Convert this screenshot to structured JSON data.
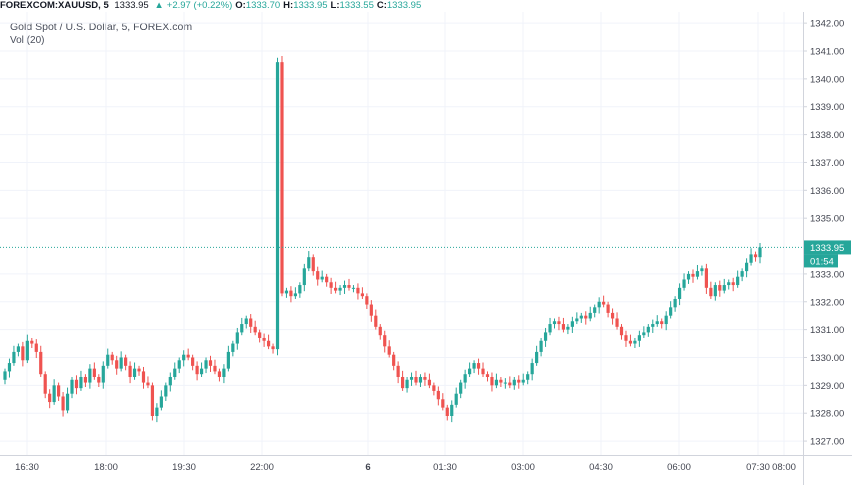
{
  "header": {
    "symbol": "FOREXCOM:XAUUSD, 5",
    "last": "1333.95",
    "change": "+2.97 (+0.22%)",
    "o_label": "O:",
    "o_value": "1333.70",
    "h_label": "H:",
    "h_value": "1333.95",
    "l_label": "L:",
    "l_value": "1333.55",
    "c_label": "C:",
    "c_value": "1333.95"
  },
  "legend": {
    "title": "Gold Spot / U.S. Dollar, 5, FOREX.com",
    "volume": "Vol (20)"
  },
  "colors": {
    "up": "#26a69a",
    "down": "#ef5350",
    "price_line": "#26a69a",
    "grid": "#f0f3fa",
    "axis": "#d1d4dc"
  },
  "chart_data": {
    "type": "candlestick",
    "x_ticks": [
      "16:30",
      "18:00",
      "19:30",
      "22:00",
      "6",
      "01:30",
      "03:00",
      "04:30",
      "06:00",
      "07:30",
      "08:00"
    ],
    "y_ticks": [
      "1342.00",
      "1341.00",
      "1340.00",
      "1339.00",
      "1338.00",
      "1337.00",
      "1336.00",
      "1335.00",
      "1333.00",
      "1332.00",
      "1331.00",
      "1330.00",
      "1329.00",
      "1328.00",
      "1327.00"
    ],
    "ylim": [
      1326.5,
      1342.4
    ],
    "last_price": "1333.95",
    "countdown": "01:54",
    "closes": [
      1329.5,
      1329.8,
      1330.2,
      1330.4,
      1329.9,
      1330.6,
      1330.5,
      1330.2,
      1329.4,
      1328.7,
      1328.4,
      1329.0,
      1328.6,
      1328.1,
      1328.7,
      1329.2,
      1328.9,
      1329.3,
      1329.1,
      1329.6,
      1329.3,
      1329.1,
      1329.7,
      1330.1,
      1329.9,
      1329.6,
      1330.0,
      1329.7,
      1329.3,
      1329.6,
      1329.5,
      1329.1,
      1329.0,
      1327.9,
      1328.2,
      1328.6,
      1329.0,
      1329.3,
      1329.6,
      1329.9,
      1330.1,
      1330.0,
      1329.7,
      1329.4,
      1329.6,
      1329.9,
      1329.7,
      1329.5,
      1329.3,
      1329.6,
      1330.2,
      1330.5,
      1330.9,
      1331.2,
      1331.4,
      1331.1,
      1330.9,
      1330.7,
      1330.6,
      1330.4,
      1330.3,
      1340.6,
      1332.3,
      1332.4,
      1332.2,
      1332.3,
      1332.6,
      1333.2,
      1333.6,
      1333.1,
      1332.8,
      1332.9,
      1332.7,
      1332.5,
      1332.4,
      1332.5,
      1332.6,
      1332.5,
      1332.5,
      1332.3,
      1332.2,
      1331.9,
      1331.5,
      1331.1,
      1330.8,
      1330.4,
      1330.1,
      1329.7,
      1329.3,
      1328.9,
      1329.2,
      1329.3,
      1329.1,
      1329.3,
      1329.2,
      1329.0,
      1328.8,
      1328.5,
      1328.2,
      1327.9,
      1328.3,
      1328.7,
      1329.1,
      1329.4,
      1329.6,
      1329.8,
      1329.6,
      1329.4,
      1329.3,
      1329.0,
      1329.2,
      1329.1,
      1329.1,
      1329.0,
      1329.2,
      1329.1,
      1329.2,
      1329.4,
      1329.8,
      1330.2,
      1330.6,
      1330.9,
      1331.2,
      1331.3,
      1331.2,
      1331.0,
      1331.1,
      1331.3,
      1331.4,
      1331.5,
      1331.4,
      1331.6,
      1331.8,
      1332.0,
      1331.9,
      1331.6,
      1331.4,
      1331.1,
      1330.8,
      1330.6,
      1330.5,
      1330.6,
      1330.8,
      1330.9,
      1331.1,
      1331.2,
      1331.3,
      1331.2,
      1331.5,
      1331.8,
      1332.1,
      1332.5,
      1332.8,
      1333.0,
      1332.9,
      1333.1,
      1333.2,
      1332.5,
      1332.2,
      1332.6,
      1332.4,
      1332.6,
      1332.7,
      1332.6,
      1332.9,
      1333.1,
      1333.4,
      1333.7,
      1333.6,
      1333.95
    ]
  }
}
